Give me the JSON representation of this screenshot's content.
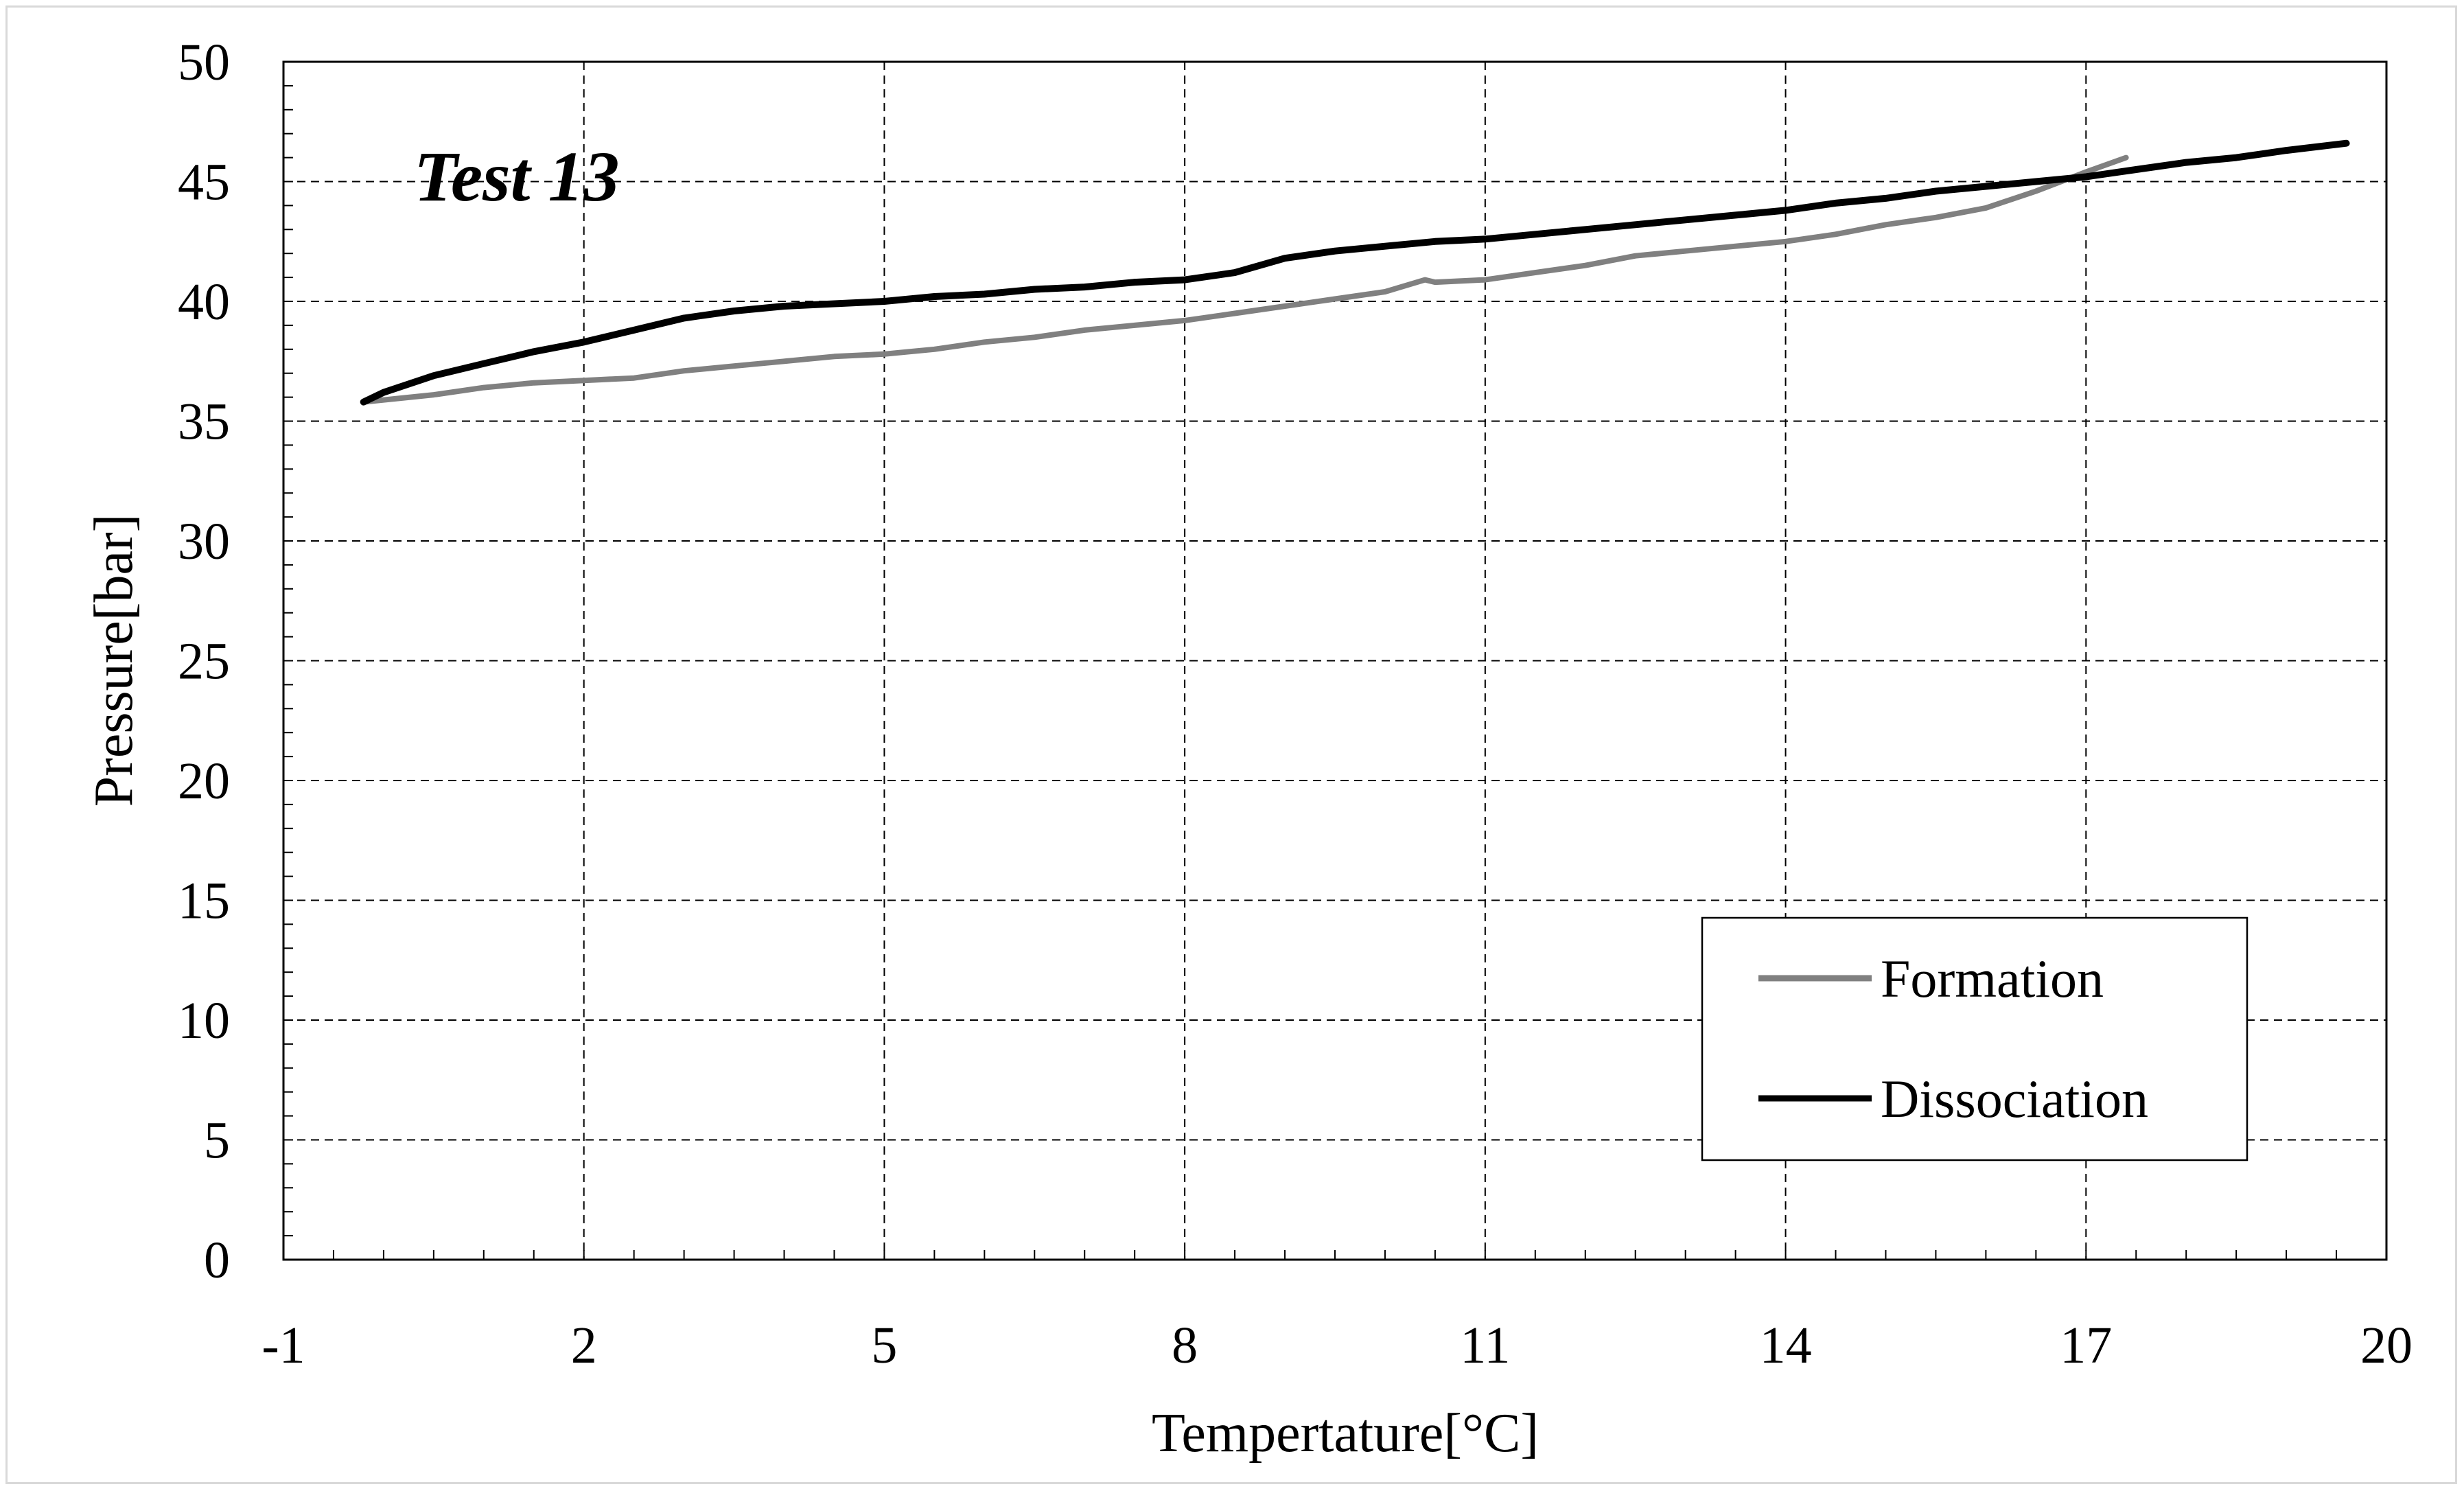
{
  "chart_data": {
    "type": "line",
    "title": "",
    "annotation": "Test 13",
    "xlabel": "Tempertature[°C]",
    "ylabel": "Pressure[bar]",
    "xlim": [
      -1,
      20
    ],
    "ylim": [
      0,
      50
    ],
    "x_ticks": [
      -1,
      2,
      5,
      8,
      11,
      14,
      17,
      20
    ],
    "y_ticks": [
      0,
      5,
      10,
      15,
      20,
      25,
      30,
      35,
      40,
      45,
      50
    ],
    "x_tick_labels": [
      "-1",
      "2",
      "5",
      "8",
      "11",
      "14",
      "17",
      "20"
    ],
    "y_tick_labels": [
      "0",
      "5",
      "10",
      "15",
      "20",
      "25",
      "30",
      "35",
      "40",
      "45",
      "50"
    ],
    "grid": true,
    "grid_style": "dashed",
    "legend_position": "bottom-right",
    "series": [
      {
        "name": "Formation",
        "color": "#808080",
        "x": [
          -0.2,
          0.5,
          1.0,
          1.5,
          2.0,
          2.5,
          3.0,
          3.5,
          4.0,
          4.5,
          5.0,
          5.5,
          6.0,
          6.5,
          7.0,
          7.5,
          8.0,
          8.5,
          9.0,
          9.5,
          10.0,
          10.4,
          10.5,
          11.0,
          11.5,
          12.0,
          12.5,
          13.0,
          13.5,
          14.0,
          14.5,
          15.0,
          15.5,
          16.0,
          16.5,
          17.0,
          17.4
        ],
        "y": [
          35.8,
          36.1,
          36.4,
          36.6,
          36.7,
          36.8,
          37.1,
          37.3,
          37.5,
          37.7,
          37.8,
          38.0,
          38.3,
          38.5,
          38.8,
          39.0,
          39.2,
          39.5,
          39.8,
          40.1,
          40.4,
          40.9,
          40.8,
          40.9,
          41.2,
          41.5,
          41.9,
          42.1,
          42.3,
          42.5,
          42.8,
          43.2,
          43.5,
          43.9,
          44.6,
          45.4,
          46.0
        ]
      },
      {
        "name": "Dissociation",
        "color": "#000000",
        "x": [
          -0.2,
          0.0,
          0.5,
          1.0,
          1.5,
          2.0,
          2.5,
          3.0,
          3.5,
          4.0,
          4.5,
          5.0,
          5.5,
          6.0,
          6.5,
          7.0,
          7.5,
          8.0,
          8.5,
          9.0,
          9.5,
          10.0,
          10.5,
          11.0,
          11.5,
          12.0,
          12.5,
          13.0,
          13.5,
          14.0,
          14.5,
          15.0,
          15.5,
          16.0,
          16.5,
          17.0,
          17.5,
          18.0,
          18.5,
          19.0,
          19.6
        ],
        "y": [
          35.8,
          36.2,
          36.9,
          37.4,
          37.9,
          38.3,
          38.8,
          39.3,
          39.6,
          39.8,
          39.9,
          40.0,
          40.2,
          40.3,
          40.5,
          40.6,
          40.8,
          40.9,
          41.2,
          41.8,
          42.1,
          42.3,
          42.5,
          42.6,
          42.8,
          43.0,
          43.2,
          43.4,
          43.6,
          43.8,
          44.1,
          44.3,
          44.6,
          44.8,
          45.0,
          45.2,
          45.5,
          45.8,
          46.0,
          46.3,
          46.6
        ]
      }
    ]
  }
}
